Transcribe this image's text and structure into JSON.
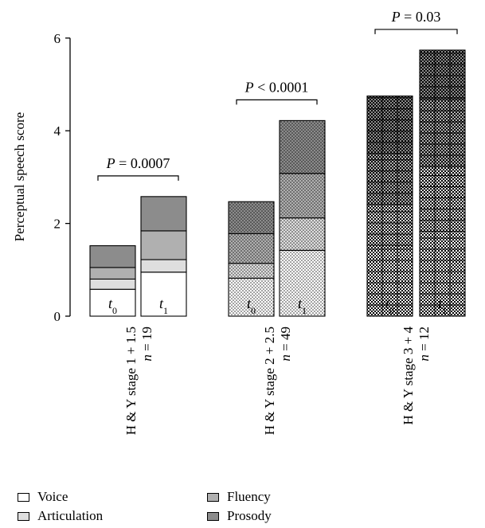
{
  "chart_data": {
    "type": "stacked-bar",
    "ylabel": "Perceptual speech score",
    "ylim": [
      0,
      6
    ],
    "yticks": [
      0,
      2,
      4,
      6
    ],
    "components": [
      "Voice",
      "Articulation",
      "Fluency",
      "Prosody"
    ],
    "groups": [
      {
        "label_line1": "H & Y stage 1 + 1.5",
        "label_line2": "n = 19",
        "pvalue": "P = 0.0007",
        "pattern": "plain",
        "bars": [
          {
            "time": "t",
            "sub": "0",
            "values": [
              0.58,
              0.22,
              0.25,
              0.47
            ]
          },
          {
            "time": "t",
            "sub": "1",
            "values": [
              0.95,
              0.27,
              0.62,
              0.74
            ]
          }
        ]
      },
      {
        "label_line1": "H & Y stage 2 + 2.5",
        "label_line2": "n = 49",
        "pvalue": "P < 0.0001",
        "pattern": "dots",
        "bars": [
          {
            "time": "t",
            "sub": "0",
            "values": [
              0.82,
              0.32,
              0.64,
              0.69
            ]
          },
          {
            "time": "t",
            "sub": "1",
            "values": [
              1.42,
              0.7,
              0.96,
              1.14
            ]
          }
        ]
      },
      {
        "label_line1": "H & Y stage 3 + 4",
        "label_line2": "n = 12",
        "pvalue": "P = 0.03",
        "pattern": "checker",
        "bars": [
          {
            "time": "t",
            "sub": "0",
            "values": [
              1.53,
              0.88,
              1.1,
              1.24
            ]
          },
          {
            "time": "t",
            "sub": "1",
            "values": [
              1.83,
              1.4,
              1.48,
              1.03
            ]
          }
        ]
      }
    ],
    "legend": [
      {
        "label": "Voice",
        "color": "#ffffff"
      },
      {
        "label": "Articulation",
        "color": "#dedede"
      },
      {
        "label": "Fluency",
        "color": "#b0b0b0"
      },
      {
        "label": "Prosody",
        "color": "#8c8c8c"
      }
    ]
  }
}
